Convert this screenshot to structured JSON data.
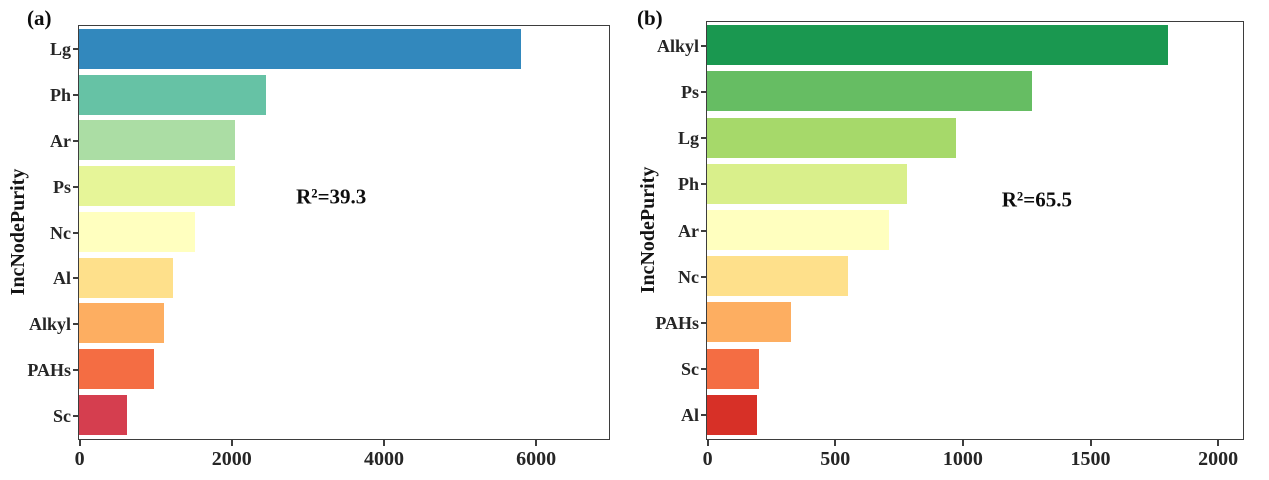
{
  "figure": {
    "background": "#ffffff",
    "text_color": "#262626",
    "axis_color": "#3d3d3d"
  },
  "chart_data": [
    {
      "type": "bar",
      "orientation": "horizontal",
      "panel": "(a)",
      "ylabel": "IncNodePurity",
      "xlabel": "",
      "annotation": "R²=39.3",
      "categories": [
        "Lg",
        "Ph",
        "Ar",
        "Ps",
        "Nc",
        "Al",
        "Alkyl",
        "PAHs",
        "Sc"
      ],
      "values": [
        5800,
        2450,
        2050,
        2040,
        1520,
        1230,
        1110,
        980,
        630
      ],
      "colors": [
        "#3288bd",
        "#66c2a5",
        "#abdda4",
        "#e6f598",
        "#ffffbf",
        "#fee08b",
        "#fdae61",
        "#f46d43",
        "#d53e4f"
      ],
      "x_ticks": [
        0,
        2000,
        4000,
        6000
      ],
      "xlim": [
        0,
        6950
      ],
      "grid": false,
      "legend": "none",
      "annotation_pos": {
        "left_pct": 47.6,
        "top_pct": 41.5
      }
    },
    {
      "type": "bar",
      "orientation": "horizontal",
      "panel": "(b)",
      "ylabel": "IncNodePurity",
      "xlabel": "",
      "annotation": "R²=65.5",
      "categories": [
        "Alkyl",
        "Ps",
        "Lg",
        "Ph",
        "Ar",
        "Nc",
        "PAHs",
        "Sc",
        "Al"
      ],
      "values": [
        1800,
        1270,
        975,
        780,
        710,
        550,
        330,
        205,
        195
      ],
      "colors": [
        "#1a9850",
        "#66bd63",
        "#a6d96a",
        "#d9ef8b",
        "#ffffbf",
        "#fee08b",
        "#fdae61",
        "#f46d43",
        "#d73027"
      ],
      "x_ticks": [
        0,
        500,
        1000,
        1500,
        2000
      ],
      "xlim": [
        0,
        2095
      ],
      "grid": false,
      "legend": "none",
      "annotation_pos": {
        "left_pct": 61.5,
        "top_pct": 42.7
      }
    }
  ]
}
